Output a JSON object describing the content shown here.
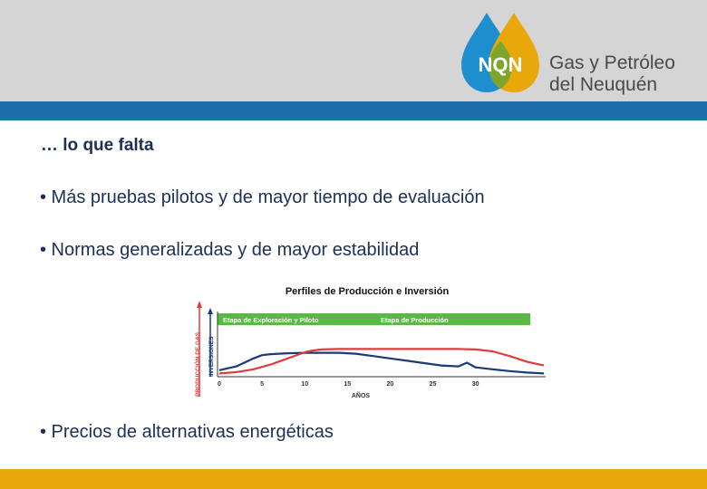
{
  "header": {
    "logo_text": "NQN",
    "company_line1": "Gas y Petróleo",
    "company_line2": "del Neuquén"
  },
  "colors": {
    "blue": "#1d6fa8",
    "yellow": "#e8a80c",
    "text": "#1d2f55",
    "green": "#5ab847"
  },
  "slide": {
    "heading": "… lo que falta",
    "bullets": [
      "• Más pruebas pilotos y de mayor tiempo de evaluación",
      "• Normas generalizadas y de mayor estabilidad",
      "• Precios de alternativas energéticas"
    ]
  },
  "chart_data": {
    "type": "line",
    "title": "Perfiles de Producción e Inversión",
    "xlabel": "AÑOS",
    "ylabel_outer": "PRODUCCIÓN DE GAS",
    "ylabel_inner": "INVERSIONES",
    "stage1": "Etapa de Exploración y Piloto",
    "stage2": "Etapa de Producción",
    "xticks": [
      "0",
      "5",
      "10",
      "15",
      "20",
      "25",
      "30"
    ],
    "xlim": [
      0,
      38
    ],
    "series": [
      {
        "color": "#1a3a7a",
        "x": [
          0,
          2,
          4,
          5,
          6,
          7,
          8,
          10,
          12,
          14,
          16,
          18,
          20,
          22,
          24,
          26,
          28,
          29,
          30,
          32,
          34,
          36,
          38
        ],
        "y": [
          0.1,
          0.18,
          0.35,
          0.42,
          0.44,
          0.45,
          0.46,
          0.47,
          0.47,
          0.47,
          0.45,
          0.4,
          0.35,
          0.3,
          0.25,
          0.2,
          0.18,
          0.26,
          0.16,
          0.12,
          0.08,
          0.05,
          0.03
        ]
      },
      {
        "color": "#e23b3b",
        "x": [
          0,
          2,
          4,
          6,
          8,
          10,
          11,
          12,
          14,
          16,
          18,
          20,
          22,
          24,
          26,
          28,
          30,
          32,
          34,
          36,
          38
        ],
        "y": [
          0.03,
          0.06,
          0.12,
          0.22,
          0.35,
          0.48,
          0.52,
          0.54,
          0.55,
          0.55,
          0.55,
          0.55,
          0.55,
          0.55,
          0.55,
          0.55,
          0.54,
          0.5,
          0.4,
          0.28,
          0.2
        ]
      }
    ]
  }
}
